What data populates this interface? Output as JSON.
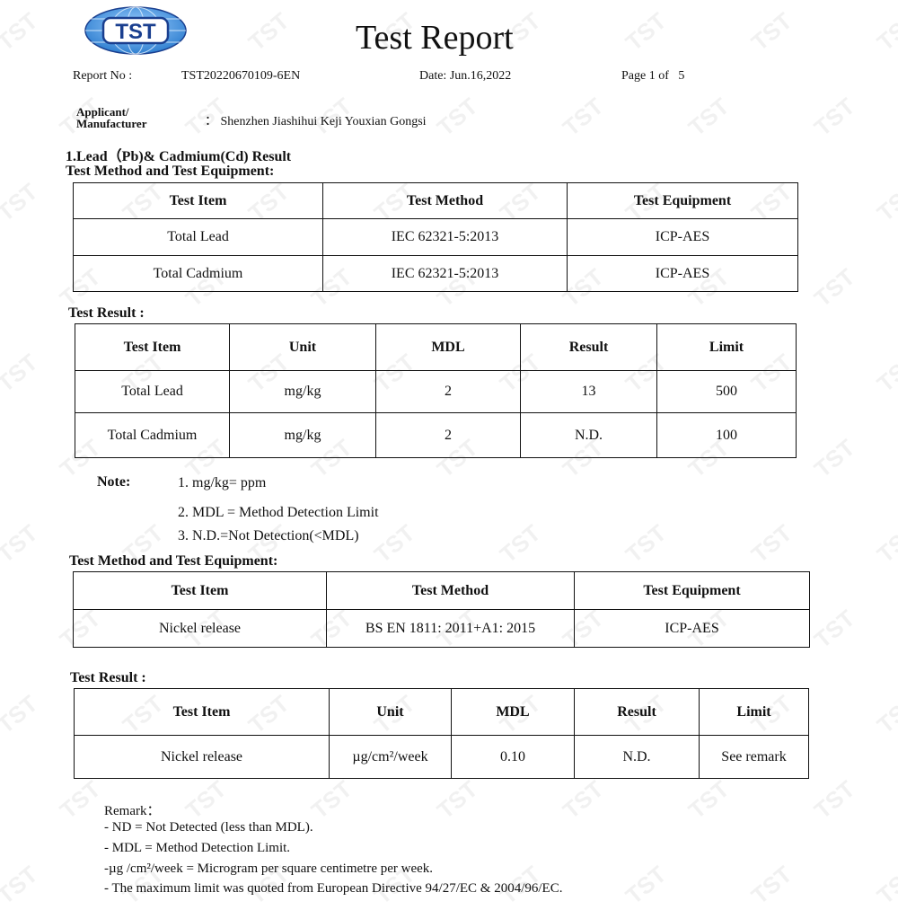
{
  "header": {
    "logo_text": "TST",
    "title": "Test Report",
    "report_no_label": "Report No :",
    "report_no": "TST20220670109-6EN",
    "date": "Date: Jun.16,2022",
    "page": "Page 1 of   5",
    "applicant_label_1": "Applicant/",
    "applicant_label_2": "Manufacturer",
    "applicant_value": "： Shenzhen Jiashihui Keji Youxian Gongsi"
  },
  "section1": {
    "heading": "1.Lead（Pb)& Cadmium(Cd) Result",
    "method_heading": "Test Method and Test Equipment:",
    "method_table": {
      "headers": [
        "Test Item",
        "Test Method",
        "Test Equipment"
      ],
      "rows": [
        [
          "Total Lead",
          "IEC 62321-5:2013",
          "ICP-AES"
        ],
        [
          "Total Cadmium",
          "IEC 62321-5:2013",
          "ICP-AES"
        ]
      ]
    },
    "result_heading": "Test Result :",
    "result_table": {
      "headers": [
        "Test Item",
        "Unit",
        "MDL",
        "Result",
        "Limit"
      ],
      "rows": [
        [
          "Total Lead",
          "mg/kg",
          "2",
          "13",
          "500"
        ],
        [
          "Total Cadmium",
          "mg/kg",
          "2",
          "N.D.",
          "100"
        ]
      ]
    },
    "note_label": "Note:",
    "notes": [
      "1. mg/kg= ppm",
      "2. MDL = Method Detection Limit",
      "3. N.D.=Not Detection(<MDL)"
    ]
  },
  "section2": {
    "method_heading": "Test Method and Test Equipment:",
    "method_table": {
      "headers": [
        "Test Item",
        "Test Method",
        "Test Equipment"
      ],
      "rows": [
        [
          "Nickel release",
          "BS EN 1811: 2011+A1: 2015",
          "ICP-AES"
        ]
      ]
    },
    "result_heading": "Test Result :",
    "result_table": {
      "headers": [
        "Test Item",
        "Unit",
        "MDL",
        "Result",
        "Limit"
      ],
      "rows": [
        [
          "Nickel release",
          "µg/cm²/week",
          "0.10",
          "N.D.",
          "See remark"
        ]
      ]
    },
    "remark_label": "Remark：",
    "remarks": [
      "- ND = Not Detected (less than MDL).",
      "- MDL = Method Detection Limit.",
      "-µg /cm²/week = Microgram per square centimetre per week.",
      "- The maximum limit was quoted from European Directive 94/27/EC & 2004/96/EC."
    ]
  },
  "colors": {
    "logo_blue": "#2f7fd0",
    "logo_dark": "#1a3f8f",
    "text": "#111111"
  }
}
